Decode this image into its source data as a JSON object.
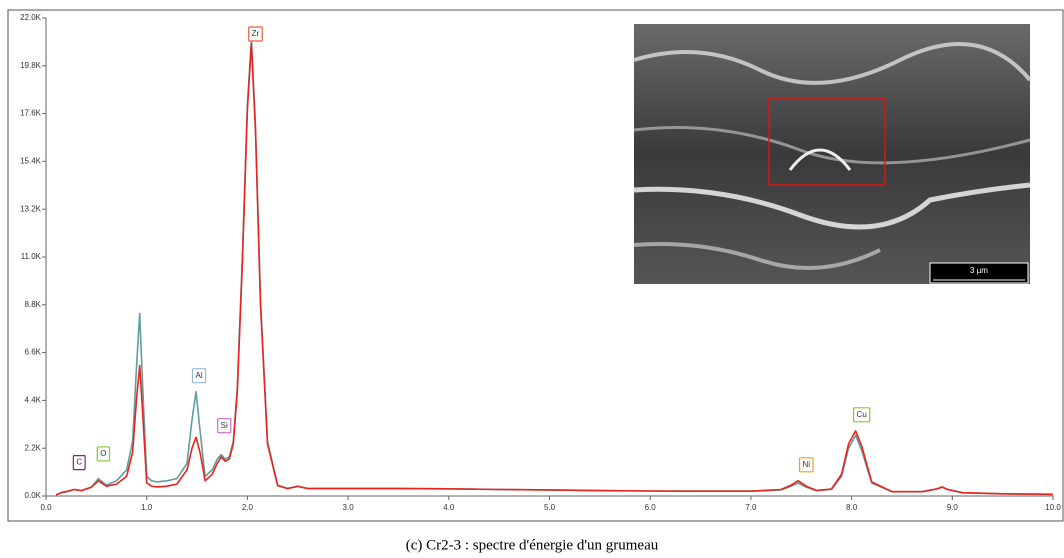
{
  "chart_data": {
    "type": "line",
    "caption": "(c) Cr2-3 : spectre d'énergie d'un grumeau",
    "inset_scale_label": "3 µm",
    "x": [
      0.1,
      0.15,
      0.2,
      0.28,
      0.35,
      0.45,
      0.52,
      0.6,
      0.7,
      0.8,
      0.86,
      0.9,
      0.93,
      0.96,
      1.0,
      1.05,
      1.1,
      1.2,
      1.3,
      1.4,
      1.45,
      1.49,
      1.53,
      1.58,
      1.65,
      1.7,
      1.74,
      1.78,
      1.82,
      1.86,
      1.9,
      1.95,
      2.0,
      2.04,
      2.08,
      2.13,
      2.2,
      2.3,
      2.4,
      2.5,
      2.6,
      3.0,
      3.5,
      4.0,
      4.5,
      5.0,
      5.5,
      6.0,
      6.5,
      7.0,
      7.3,
      7.4,
      7.47,
      7.55,
      7.65,
      7.8,
      7.9,
      7.97,
      8.04,
      8.1,
      8.2,
      8.4,
      8.7,
      8.85,
      8.9,
      8.95,
      9.1,
      9.5,
      10.0
    ],
    "series": [
      {
        "color": "#5f9ea0",
        "values": [
          50,
          150,
          200,
          300,
          250,
          400,
          800,
          500,
          700,
          1200,
          2500,
          6000,
          8400,
          5000,
          900,
          700,
          650,
          700,
          800,
          1500,
          3500,
          4800,
          3000,
          900,
          1200,
          1700,
          1900,
          1700,
          1800,
          2500,
          5000,
          11000,
          18000,
          21000,
          17000,
          9000,
          2500,
          500,
          350,
          450,
          350,
          350,
          350,
          330,
          300,
          280,
          250,
          230,
          220,
          220,
          280,
          450,
          600,
          400,
          250,
          300,
          900,
          2200,
          2800,
          2100,
          600,
          200,
          200,
          320,
          400,
          300,
          150,
          100,
          80
        ]
      },
      {
        "color": "#e8241f",
        "values": [
          50,
          150,
          200,
          300,
          250,
          400,
          700,
          450,
          550,
          900,
          2000,
          4500,
          6000,
          3800,
          600,
          450,
          420,
          450,
          550,
          1200,
          2200,
          2700,
          2000,
          700,
          1000,
          1500,
          1800,
          1600,
          1700,
          2400,
          4800,
          10800,
          17800,
          20800,
          16800,
          8800,
          2400,
          480,
          340,
          440,
          340,
          340,
          340,
          330,
          300,
          280,
          250,
          230,
          220,
          220,
          300,
          500,
          700,
          450,
          260,
          320,
          1000,
          2400,
          3000,
          2300,
          650,
          200,
          200,
          330,
          420,
          310,
          150,
          100,
          80
        ]
      }
    ],
    "annotations": [
      {
        "text": "C",
        "x": 0.33,
        "color": "#8b1a8b"
      },
      {
        "text": "O",
        "x": 0.57,
        "color": "#7ccd2c"
      },
      {
        "text": "Al",
        "x": 1.52,
        "color": "#9ab8d8"
      },
      {
        "text": "Si",
        "x": 1.77,
        "color": "#d46ad4"
      },
      {
        "text": "Zr",
        "x": 2.08,
        "color": "#e8603c"
      },
      {
        "text": "Ni",
        "x": 7.55,
        "color": "#f0a020"
      },
      {
        "text": "Cu",
        "x": 8.1,
        "color": "#7ccd2c"
      }
    ],
    "xlim": [
      0,
      10
    ],
    "ylim": [
      0,
      22000
    ],
    "xticks": [
      {
        "value": 0,
        "label": "0.0"
      },
      {
        "value": 1,
        "label": "1.0"
      },
      {
        "value": 2,
        "label": "2.0"
      },
      {
        "value": 3,
        "label": "3.0"
      },
      {
        "value": 4,
        "label": "4.0"
      },
      {
        "value": 5,
        "label": "5.0"
      },
      {
        "value": 6,
        "label": "6.0"
      },
      {
        "value": 7,
        "label": "7.0"
      },
      {
        "value": 8,
        "label": "8.0"
      },
      {
        "value": 9,
        "label": "9.0"
      },
      {
        "value": 10,
        "label": "10.0"
      }
    ],
    "yticks": [
      {
        "value": 0,
        "label": "0.0K"
      },
      {
        "value": 2200,
        "label": "2.2K"
      },
      {
        "value": 4400,
        "label": "4.4K"
      },
      {
        "value": 6600,
        "label": "6.6K"
      },
      {
        "value": 8800,
        "label": "8.8K"
      },
      {
        "value": 11000,
        "label": "11.0K"
      },
      {
        "value": 13200,
        "label": "13.2K"
      },
      {
        "value": 15400,
        "label": "15.4K"
      },
      {
        "value": 17600,
        "label": "17.6K"
      },
      {
        "value": 19800,
        "label": "19.8K"
      },
      {
        "value": 22000,
        "label": "22.0K"
      }
    ]
  }
}
